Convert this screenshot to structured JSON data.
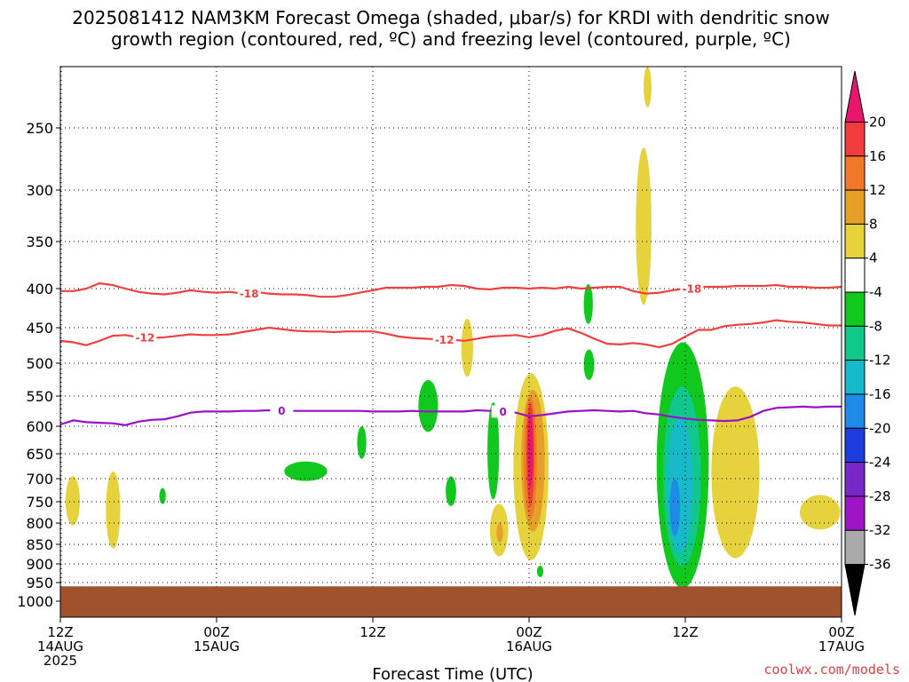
{
  "title_line1": "2025081412 NAM3KM Forecast Omega (shaded, μbar/s) for KRDI with dendritic snow",
  "title_line2": "growth region (contoured, red, ºC) and freezing level (contoured, purple, ºC)",
  "xlabel": "Forecast Time (UTC)",
  "credit": "coolwx.com/models",
  "chart_data": {
    "type": "contour",
    "x": {
      "unit": "forecast hour",
      "range": [
        0,
        60
      ],
      "ticks": [
        {
          "hour": 0,
          "lines": [
            "12Z",
            "14AUG",
            "2025"
          ]
        },
        {
          "hour": 12,
          "lines": [
            "00Z",
            "15AUG"
          ]
        },
        {
          "hour": 24,
          "lines": [
            "12Z"
          ]
        },
        {
          "hour": 36,
          "lines": [
            "00Z",
            "16AUG"
          ]
        },
        {
          "hour": 48,
          "lines": [
            "12Z"
          ]
        },
        {
          "hour": 60,
          "lines": [
            "00Z",
            "17AUG"
          ]
        }
      ]
    },
    "y": {
      "unit": "hPa",
      "range": [
        1040,
        200
      ],
      "ticks": [
        250,
        300,
        350,
        400,
        450,
        500,
        550,
        600,
        650,
        700,
        750,
        800,
        850,
        900,
        950,
        1000
      ],
      "grid": true
    },
    "ground": {
      "above_hpa": 960,
      "color": "#a0522d"
    },
    "colorbar": {
      "labels": [
        "20",
        "16",
        "12",
        "8",
        "4",
        "-4",
        "-8",
        "-12",
        "-16",
        "-20",
        "-24",
        "-28",
        "-32",
        "-36"
      ],
      "colors": [
        "#e8176e",
        "#f03c3c",
        "#f07828",
        "#e6a028",
        "#e6d23c",
        "#ffffff",
        "#10c81e",
        "#10c88c",
        "#18b9c8",
        "#1e8ce6",
        "#1e3cdc",
        "#7828c8",
        "#a014c8",
        "#aaaaaa",
        "#000000"
      ]
    },
    "contours": [
      {
        "name": "-18",
        "color": "#f04040",
        "label_hours": [
          14.5,
          48.5
        ],
        "points": [
          [
            0,
            403
          ],
          [
            1,
            403
          ],
          [
            2,
            400
          ],
          [
            3,
            394
          ],
          [
            4,
            396
          ],
          [
            5,
            400
          ],
          [
            6,
            404
          ],
          [
            7,
            406
          ],
          [
            8,
            407
          ],
          [
            9,
            405
          ],
          [
            10,
            402
          ],
          [
            11,
            404
          ],
          [
            12,
            405
          ],
          [
            13,
            404
          ],
          [
            14,
            406
          ],
          [
            15,
            404
          ],
          [
            16,
            406
          ],
          [
            17,
            407
          ],
          [
            18,
            407
          ],
          [
            19,
            408
          ],
          [
            20,
            410
          ],
          [
            21,
            410
          ],
          [
            22,
            408
          ],
          [
            23,
            405
          ],
          [
            24,
            402
          ],
          [
            25,
            399
          ],
          [
            26,
            399
          ],
          [
            27,
            399
          ],
          [
            28,
            398
          ],
          [
            29,
            398
          ],
          [
            30,
            396
          ],
          [
            31,
            397
          ],
          [
            32,
            400
          ],
          [
            33,
            401
          ],
          [
            34,
            399
          ],
          [
            35,
            399
          ],
          [
            36,
            400
          ],
          [
            37,
            399
          ],
          [
            38,
            400
          ],
          [
            39,
            398
          ],
          [
            40,
            400
          ],
          [
            41,
            399
          ],
          [
            42,
            398
          ],
          [
            43,
            398
          ],
          [
            44,
            403
          ],
          [
            45,
            406
          ],
          [
            46,
            405
          ],
          [
            47,
            402
          ],
          [
            48,
            400
          ],
          [
            49,
            398
          ],
          [
            50,
            398
          ],
          [
            51,
            398
          ],
          [
            52,
            397
          ],
          [
            53,
            397
          ],
          [
            54,
            397
          ],
          [
            55,
            396
          ],
          [
            56,
            398
          ],
          [
            57,
            398
          ],
          [
            58,
            399
          ],
          [
            59,
            399
          ],
          [
            60,
            398
          ]
        ]
      },
      {
        "name": "-12",
        "color": "#f04040",
        "label_hours": [
          6.5,
          29.5
        ],
        "points": [
          [
            0,
            468
          ],
          [
            1,
            470
          ],
          [
            2,
            474
          ],
          [
            3,
            468
          ],
          [
            4,
            461
          ],
          [
            5,
            460
          ],
          [
            6,
            463
          ],
          [
            7,
            464
          ],
          [
            8,
            463
          ],
          [
            9,
            461
          ],
          [
            10,
            459
          ],
          [
            11,
            460
          ],
          [
            12,
            460
          ],
          [
            13,
            459
          ],
          [
            14,
            456
          ],
          [
            15,
            453
          ],
          [
            16,
            450
          ],
          [
            17,
            452
          ],
          [
            18,
            454
          ],
          [
            19,
            455
          ],
          [
            20,
            455
          ],
          [
            21,
            456
          ],
          [
            22,
            455
          ],
          [
            23,
            455
          ],
          [
            24,
            455
          ],
          [
            25,
            458
          ],
          [
            26,
            462
          ],
          [
            27,
            464
          ],
          [
            28,
            465
          ],
          [
            29,
            466
          ],
          [
            30,
            466
          ],
          [
            31,
            468
          ],
          [
            32,
            465
          ],
          [
            33,
            462
          ],
          [
            34,
            461
          ],
          [
            35,
            460
          ],
          [
            36,
            463
          ],
          [
            37,
            460
          ],
          [
            38,
            454
          ],
          [
            39,
            451
          ],
          [
            40,
            457
          ],
          [
            41,
            465
          ],
          [
            42,
            472
          ],
          [
            43,
            473
          ],
          [
            44,
            471
          ],
          [
            45,
            473
          ],
          [
            46,
            477
          ],
          [
            47,
            472
          ],
          [
            48,
            462
          ],
          [
            49,
            453
          ],
          [
            50,
            453
          ],
          [
            51,
            448
          ],
          [
            52,
            446
          ],
          [
            53,
            445
          ],
          [
            54,
            443
          ],
          [
            55,
            440
          ],
          [
            56,
            442
          ],
          [
            57,
            443
          ],
          [
            58,
            445
          ],
          [
            59,
            447
          ],
          [
            60,
            447
          ]
        ]
      },
      {
        "name": "0",
        "color": "#9a12c8",
        "label_hours": [
          17,
          34
        ],
        "points": [
          [
            0,
            597
          ],
          [
            1,
            590
          ],
          [
            2,
            593
          ],
          [
            3,
            594
          ],
          [
            4,
            595
          ],
          [
            5,
            598
          ],
          [
            6,
            592
          ],
          [
            7,
            589
          ],
          [
            8,
            588
          ],
          [
            9,
            583
          ],
          [
            10,
            577
          ],
          [
            11,
            575
          ],
          [
            12,
            575
          ],
          [
            13,
            575
          ],
          [
            14,
            574
          ],
          [
            15,
            574
          ],
          [
            16,
            573
          ],
          [
            17,
            574
          ],
          [
            18,
            574
          ],
          [
            19,
            574
          ],
          [
            20,
            574
          ],
          [
            21,
            574
          ],
          [
            22,
            574
          ],
          [
            23,
            574
          ],
          [
            24,
            575
          ],
          [
            25,
            575
          ],
          [
            26,
            575
          ],
          [
            27,
            574
          ],
          [
            28,
            575
          ],
          [
            29,
            575
          ],
          [
            30,
            575
          ],
          [
            31,
            575
          ],
          [
            32,
            573
          ],
          [
            33,
            574
          ],
          [
            34,
            575
          ],
          [
            35,
            577
          ],
          [
            36,
            583
          ],
          [
            37,
            581
          ],
          [
            38,
            578
          ],
          [
            39,
            575
          ],
          [
            40,
            574
          ],
          [
            41,
            573
          ],
          [
            42,
            574
          ],
          [
            43,
            575
          ],
          [
            44,
            574
          ],
          [
            45,
            578
          ],
          [
            46,
            580
          ],
          [
            47,
            584
          ],
          [
            48,
            587
          ],
          [
            49,
            589
          ],
          [
            50,
            590
          ],
          [
            51,
            591
          ],
          [
            52,
            590
          ],
          [
            53,
            584
          ],
          [
            54,
            574
          ],
          [
            55,
            569
          ],
          [
            56,
            568
          ],
          [
            57,
            567
          ],
          [
            58,
            568
          ],
          [
            59,
            567
          ],
          [
            60,
            567
          ]
        ]
      }
    ],
    "omega_areas": [
      {
        "value_band": "4 to 8",
        "color": "#e6d23c",
        "hours": [
          0.4,
          1.5
        ],
        "pressures": [
          695,
          805
        ]
      },
      {
        "value_band": "4 to 8",
        "color": "#e6d23c",
        "hours": [
          3.5,
          4.6
        ],
        "pressures": [
          685,
          860
        ]
      },
      {
        "value_band": "4 to 8",
        "color": "#e6d23c",
        "hours": [
          30.8,
          31.7
        ],
        "pressures": [
          438,
          520
        ]
      },
      {
        "value_band": "4 to 8",
        "color": "#e6d23c",
        "hours": [
          33.0,
          34.4
        ],
        "pressures": [
          755,
          880
        ]
      },
      {
        "value_band": "4 to 8",
        "color": "#e6d23c",
        "hours": [
          34.8,
          37.5
        ],
        "pressures": [
          515,
          890
        ]
      },
      {
        "value_band": "4 to 8",
        "color": "#e6d23c",
        "hours": [
          44.2,
          45.4
        ],
        "pressures": [
          265,
          420
        ]
      },
      {
        "value_band": "4 to 8",
        "color": "#e6d23c",
        "hours": [
          44.8,
          45.4
        ],
        "pressures": [
          200,
          232
        ]
      },
      {
        "value_band": "4 to 8",
        "color": "#e6d23c",
        "hours": [
          50.0,
          53.7
        ],
        "pressures": [
          535,
          885
        ]
      },
      {
        "value_band": "4 to 8",
        "color": "#e6d23c",
        "hours": [
          56.8,
          59.9
        ],
        "pressures": [
          735,
          815
        ]
      },
      {
        "value_band": "8 to 12",
        "color": "#e6a028",
        "hours": [
          33.5,
          34.0
        ],
        "pressures": [
          800,
          845
        ]
      },
      {
        "value_band": "8 to 12",
        "color": "#e6a028",
        "hours": [
          35.4,
          37.2
        ],
        "pressures": [
          540,
          820
        ]
      },
      {
        "value_band": "12 to 16",
        "color": "#f07828",
        "hours": [
          35.6,
          36.6
        ],
        "pressures": [
          552,
          790
        ]
      },
      {
        "value_band": "16 to 20",
        "color": "#f03c3c",
        "hours": [
          35.8,
          36.4
        ],
        "pressures": [
          560,
          760
        ]
      },
      {
        "value_band": "20+",
        "color": "#e8176e",
        "hours": [
          35.9,
          36.3
        ],
        "pressures": [
          580,
          720
        ]
      },
      {
        "value_band": "-4 to -8",
        "color": "#10c81e",
        "hours": [
          7.6,
          8.1
        ],
        "pressures": [
          720,
          755
        ]
      },
      {
        "value_band": "-4 to -8",
        "color": "#10c81e",
        "hours": [
          17.2,
          20.5
        ],
        "pressures": [
          665,
          705
        ]
      },
      {
        "value_band": "-4 to -8",
        "color": "#10c81e",
        "hours": [
          22.8,
          23.5
        ],
        "pressures": [
          600,
          660
        ]
      },
      {
        "value_band": "-4 to -8",
        "color": "#10c81e",
        "hours": [
          27.5,
          29.0
        ],
        "pressures": [
          525,
          610
        ]
      },
      {
        "value_band": "-4 to -8",
        "color": "#10c81e",
        "hours": [
          29.6,
          30.4
        ],
        "pressures": [
          695,
          760
        ]
      },
      {
        "value_band": "-4 to -8",
        "color": "#10c81e",
        "hours": [
          32.8,
          33.7
        ],
        "pressures": [
          560,
          745
        ]
      },
      {
        "value_band": "-4 to -8",
        "color": "#10c81e",
        "hours": [
          36.6,
          37.1
        ],
        "pressures": [
          905,
          935
        ]
      },
      {
        "value_band": "-4 to -8",
        "color": "#10c81e",
        "hours": [
          40.2,
          40.9
        ],
        "pressures": [
          395,
          445
        ]
      },
      {
        "value_band": "-4 to -8",
        "color": "#10c81e",
        "hours": [
          40.2,
          41.0
        ],
        "pressures": [
          480,
          525
        ]
      },
      {
        "value_band": "-4 to -8",
        "color": "#10c81e",
        "hours": [
          45.8,
          49.8
        ],
        "pressures": [
          470,
          965
        ]
      },
      {
        "value_band": "-8 to -12",
        "color": "#10c88c",
        "hours": [
          46.3,
          49.2
        ],
        "pressures": [
          535,
          905
        ]
      },
      {
        "value_band": "-12 to -16",
        "color": "#18b9c8",
        "hours": [
          46.6,
          48.6
        ],
        "pressures": [
          585,
          870
        ]
      },
      {
        "value_band": "-16 to -20",
        "color": "#1e8ce6",
        "hours": [
          46.8,
          47.6
        ],
        "pressures": [
          700,
          830
        ]
      }
    ]
  }
}
